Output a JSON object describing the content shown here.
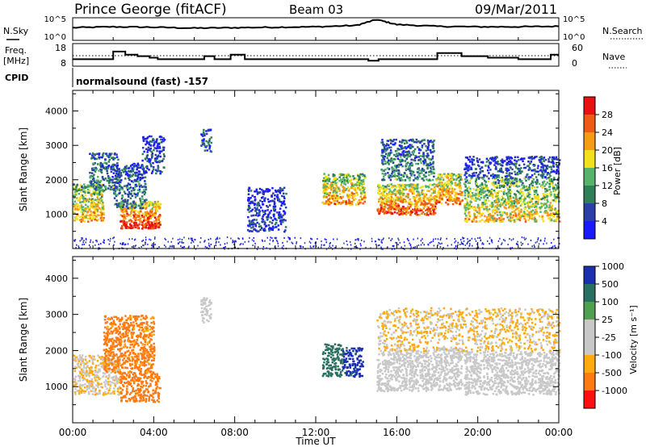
{
  "header": {
    "station": "Prince George (fitACF)",
    "beam": "Beam 03",
    "date": "09/Mar/2011"
  },
  "left_labels": {
    "nsky": "N.Sky",
    "freq_line1": "Freq.",
    "freq_line2": "[MHz]",
    "cpid": "CPID"
  },
  "right_labels": {
    "nsearch": "N.Search",
    "nave": "Nave"
  },
  "cpid_text": "normalsound (fast) -157",
  "colors": {
    "power_scale": [
      "#1a1aff",
      "#2c3fa8",
      "#2f7f57",
      "#55b36a",
      "#f2e01a",
      "#f59b14",
      "#ef5a14",
      "#e81010"
    ],
    "velocity_scale": [
      "#ff1010",
      "#ff7a10",
      "#ffaa10",
      "#c8c8c8",
      "#c8c8c8",
      "#4fa04f",
      "#2a7060",
      "#1a30b0"
    ]
  },
  "chart_data": [
    {
      "type": "line",
      "panel": "noise",
      "ylabel_left": "N.Sky",
      "ylabel_right": "N.Search",
      "y_tick_labels": [
        "10^0",
        "10^5"
      ],
      "x": [
        "00:00",
        "02:00",
        "04:00",
        "06:00",
        "08:00",
        "10:00",
        "12:00",
        "14:00",
        "15:00",
        "16:00",
        "18:00",
        "20:00",
        "22:00",
        "24:00"
      ],
      "series": [
        {
          "values": [
            2.8,
            3.0,
            2.9,
            2.7,
            2.8,
            2.9,
            3.0,
            3.3,
            4.6,
            3.5,
            3.1,
            3.0,
            3.0,
            3.1
          ]
        }
      ]
    },
    {
      "type": "line",
      "panel": "frequency",
      "ylabel_left": "Freq. [MHz]",
      "ylabel_right": "Nave",
      "y_left_ticks": [
        8,
        18
      ],
      "y_right_ticks": [
        0,
        60
      ],
      "series": [
        {
          "values_step": [
            [
              0.0,
              12
            ],
            [
              2.0,
              17
            ],
            [
              2.6,
              15
            ],
            [
              3.2,
              14
            ],
            [
              3.8,
              13
            ],
            [
              4.2,
              12
            ],
            [
              6.5,
              14
            ],
            [
              7.0,
              12
            ],
            [
              7.8,
              15
            ],
            [
              8.5,
              12
            ],
            [
              11.8,
              12
            ],
            [
              14.6,
              11
            ],
            [
              15.1,
              12
            ],
            [
              17.5,
              12
            ],
            [
              18.0,
              16
            ],
            [
              19.2,
              14
            ],
            [
              20.5,
              13
            ],
            [
              22.0,
              12
            ],
            [
              23.6,
              15
            ]
          ]
        },
        {
          "values_dotted": [
            [
              0,
              13.5
            ],
            [
              24,
              13.5
            ]
          ]
        }
      ]
    },
    {
      "type": "heatmap",
      "panel": "power",
      "ylabel": "Slant Range [km]",
      "y_ticks": [
        1000,
        2000,
        3000,
        4000
      ],
      "ylim": [
        0,
        4600
      ],
      "colorbar_label": "Power [dB]",
      "colorbar_ticks": [
        4,
        8,
        12,
        16,
        20,
        24,
        28
      ],
      "scatter_regions": [
        {
          "t": [
            0.0,
            1.5
          ],
          "r": [
            800,
            1900
          ],
          "level": 0.7
        },
        {
          "t": [
            0.8,
            2.2
          ],
          "r": [
            1700,
            2800
          ],
          "level": 0.35
        },
        {
          "t": [
            2.3,
            4.3
          ],
          "r": [
            600,
            1400
          ],
          "level": 0.95
        },
        {
          "t": [
            2.0,
            3.6
          ],
          "r": [
            1200,
            2500
          ],
          "level": 0.3
        },
        {
          "t": [
            3.4,
            4.5
          ],
          "r": [
            2200,
            3300
          ],
          "level": 0.2
        },
        {
          "t": [
            6.3,
            6.8
          ],
          "r": [
            2800,
            3500
          ],
          "level": 0.25
        },
        {
          "t": [
            8.6,
            10.5
          ],
          "r": [
            500,
            1800
          ],
          "level": 0.15
        },
        {
          "t": [
            12.3,
            14.4
          ],
          "r": [
            1300,
            2200
          ],
          "level": 0.75
        },
        {
          "t": [
            15.0,
            17.9
          ],
          "r": [
            1000,
            1900
          ],
          "level": 0.85
        },
        {
          "t": [
            15.2,
            17.8
          ],
          "r": [
            2000,
            3200
          ],
          "level": 0.35
        },
        {
          "t": [
            17.9,
            19.2
          ],
          "r": [
            1300,
            2200
          ],
          "level": 0.8
        },
        {
          "t": [
            19.3,
            24.0
          ],
          "r": [
            800,
            2100
          ],
          "level": 0.65
        },
        {
          "t": [
            19.3,
            24.0
          ],
          "r": [
            2100,
            2700
          ],
          "level": 0.2
        }
      ]
    },
    {
      "type": "heatmap",
      "panel": "velocity",
      "xlabel": "Time UT",
      "ylabel": "Slant Range [km]",
      "x_tick_labels": [
        "00:00",
        "04:00",
        "08:00",
        "12:00",
        "16:00",
        "20:00",
        "00:00"
      ],
      "y_ticks": [
        1000,
        2000,
        3000,
        4000
      ],
      "ylim": [
        0,
        4600
      ],
      "colorbar_label": "Velocity [m s⁻¹]",
      "colorbar_ticks": [
        -1000,
        -500,
        -100,
        -25,
        25,
        100,
        500,
        1000
      ],
      "scatter_regions": [
        {
          "t": [
            0.0,
            2.3
          ],
          "r": [
            800,
            1900
          ],
          "v": -20
        },
        {
          "t": [
            2.3,
            4.3
          ],
          "r": [
            600,
            1400
          ],
          "v": -300
        },
        {
          "t": [
            1.5,
            4.0
          ],
          "r": [
            1400,
            3000
          ],
          "v": -150
        },
        {
          "t": [
            6.3,
            6.8
          ],
          "r": [
            2800,
            3500
          ],
          "v": 0
        },
        {
          "t": [
            12.3,
            13.3
          ],
          "r": [
            1300,
            2200
          ],
          "v": 180
        },
        {
          "t": [
            13.3,
            14.3
          ],
          "r": [
            1300,
            2100
          ],
          "v": 700
        },
        {
          "t": [
            15.0,
            17.9
          ],
          "r": [
            900,
            2000
          ],
          "v": 0
        },
        {
          "t": [
            17.9,
            19.2
          ],
          "r": [
            900,
            2100
          ],
          "v": 0
        },
        {
          "t": [
            19.3,
            24.0
          ],
          "r": [
            800,
            2000
          ],
          "v": 0
        },
        {
          "t": [
            15.0,
            24.0
          ],
          "r": [
            2000,
            3200
          ],
          "v": -30
        }
      ]
    }
  ]
}
